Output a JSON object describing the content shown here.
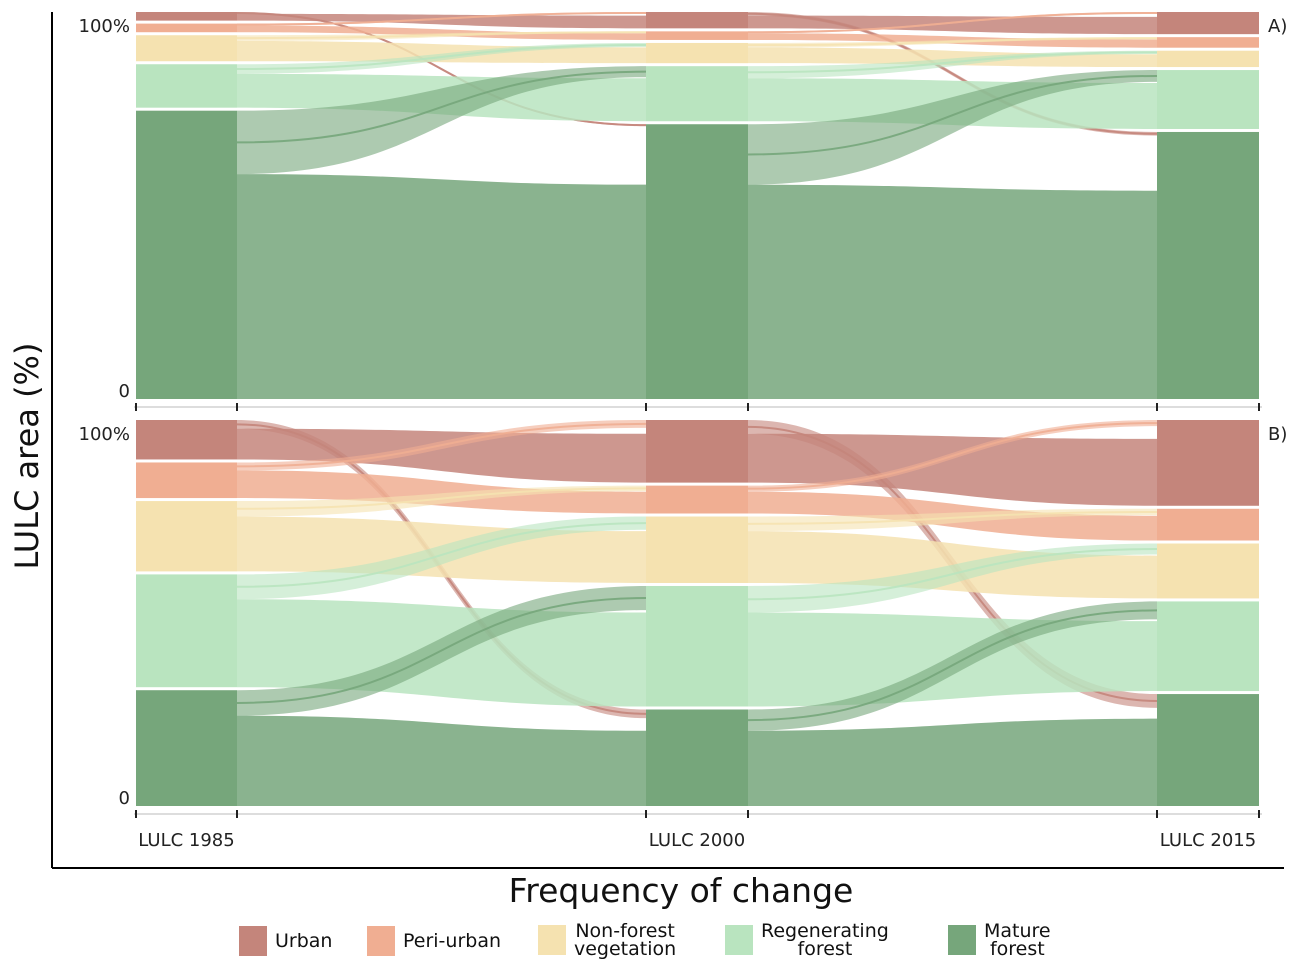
{
  "chart_data": {
    "type": "alluvial",
    "ylabel": "LULC area (%)",
    "xlabel": "Frequency of change",
    "categories": [
      "LULC 1985",
      "LULC 2000",
      "LULC 2015"
    ],
    "y_tick_labels": [
      "0",
      "100%"
    ],
    "legend": [
      {
        "key": "urban",
        "label": "Urban",
        "color": "#c4857b"
      },
      {
        "key": "periurban",
        "label": "Peri-urban",
        "color": "#f0ae92"
      },
      {
        "key": "nonforest",
        "label": "Non-forest\nvegetation",
        "color": "#f5e2b0"
      },
      {
        "key": "regen",
        "label": "Regenerating\nforest",
        "color": "#b9e4bf"
      },
      {
        "key": "mature",
        "label": "Mature\nforest",
        "color": "#76a67b"
      }
    ],
    "panels": [
      {
        "label": "A)",
        "stacks": [
          {
            "year": "LULC 1985",
            "urban": 3,
            "periurban": 3,
            "nonforest": 7.5,
            "regen": 12,
            "mature": 74.5
          },
          {
            "year": "LULC 2000",
            "urban": 5,
            "periurban": 3,
            "nonforest": 6,
            "regen": 15,
            "mature": 71
          },
          {
            "year": "LULC 2015",
            "urban": 6.5,
            "periurban": 3.5,
            "nonforest": 5,
            "regen": 16,
            "mature": 69
          }
        ]
      },
      {
        "label": "B)",
        "stacks": [
          {
            "year": "LULC 1985",
            "urban": 11,
            "periurban": 10,
            "nonforest": 19,
            "regen": 30,
            "mature": 30
          },
          {
            "year": "LULC 2000",
            "urban": 17,
            "periurban": 8,
            "nonforest": 18,
            "regen": 32,
            "mature": 25
          },
          {
            "year": "LULC 2015",
            "urban": 23,
            "periurban": 9,
            "nonforest": 15,
            "regen": 24,
            "mature": 29
          }
        ]
      }
    ]
  }
}
